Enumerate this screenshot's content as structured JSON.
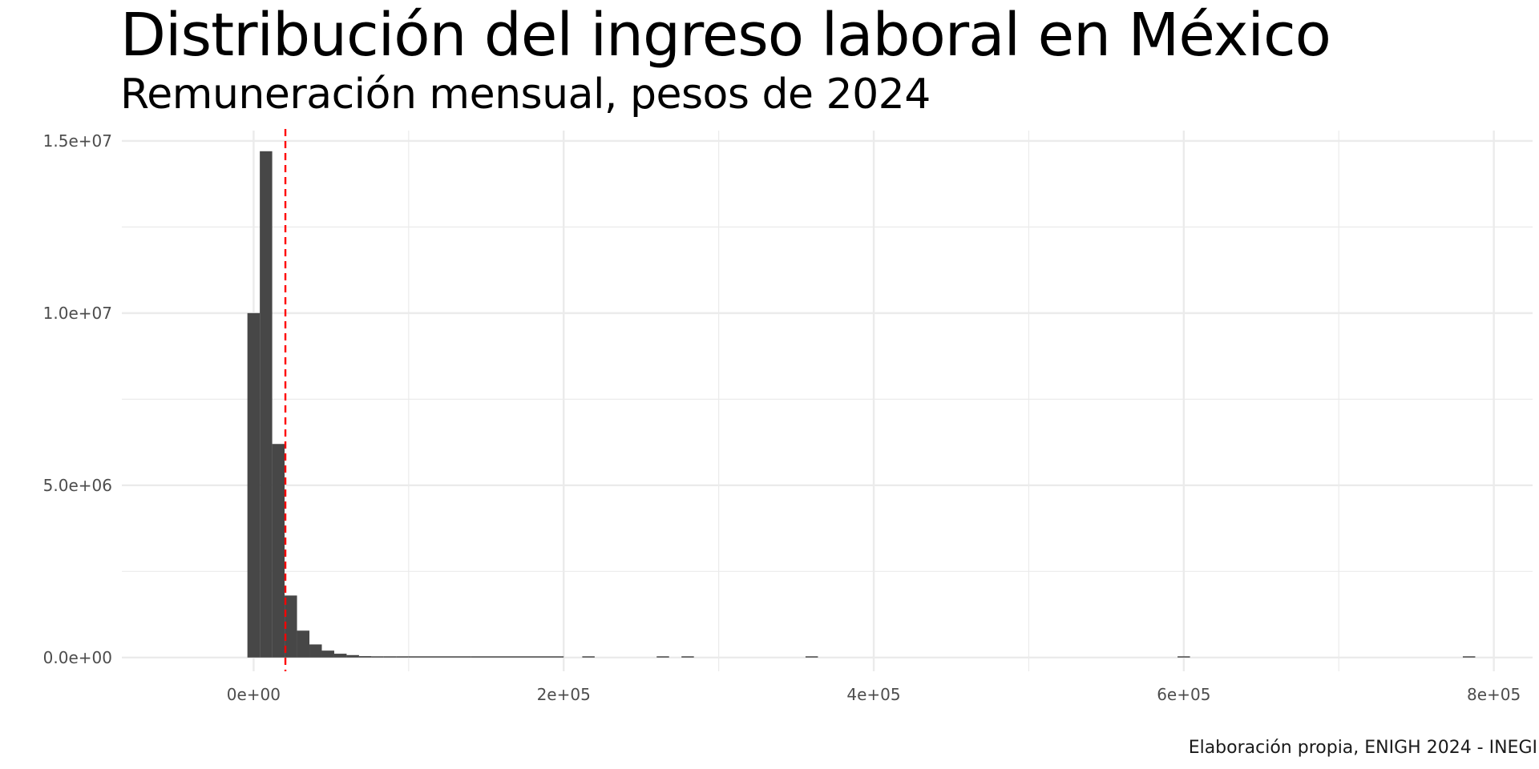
{
  "chart_data": {
    "type": "bar",
    "title": "Distribución del ingreso laboral en México",
    "subtitle": "Remuneración mensual, pesos de 2024",
    "caption": "Elaboración propia, ENIGH 2024 - INEGI",
    "xlabel": "",
    "ylabel": "",
    "x_ticks": [
      0,
      200000,
      400000,
      600000,
      800000
    ],
    "x_tick_labels": [
      "0e+00",
      "2e+05",
      "4e+05",
      "6e+05",
      "8e+05"
    ],
    "y_ticks": [
      0,
      5000000,
      10000000,
      15000000
    ],
    "y_tick_labels": [
      "0.0e+00",
      "5.0e+06",
      "1.0e+07",
      "1.5e+07"
    ],
    "xlim": [
      -85000,
      825000
    ],
    "ylim": [
      -400000,
      15300000
    ],
    "grid": true,
    "bin_width": 8000,
    "series": [
      {
        "bins": [
          {
            "x0": -4000,
            "x1": 4000,
            "count": 10000000
          },
          {
            "x0": 4000,
            "x1": 12000,
            "count": 14700000
          },
          {
            "x0": 12000,
            "x1": 20000,
            "count": 6200000
          },
          {
            "x0": 20000,
            "x1": 28000,
            "count": 1800000
          },
          {
            "x0": 28000,
            "x1": 36000,
            "count": 780000
          },
          {
            "x0": 36000,
            "x1": 44000,
            "count": 380000
          },
          {
            "x0": 44000,
            "x1": 52000,
            "count": 200000
          },
          {
            "x0": 52000,
            "x1": 60000,
            "count": 110000
          },
          {
            "x0": 60000,
            "x1": 68000,
            "count": 70000
          },
          {
            "x0": 68000,
            "x1": 76000,
            "count": 40000
          },
          {
            "x0": 76000,
            "x1": 84000,
            "count": 25000
          },
          {
            "x0": 84000,
            "x1": 92000,
            "count": 15000
          },
          {
            "x0": 92000,
            "x1": 100000,
            "count": 10000
          },
          {
            "x0": 100000,
            "x1": 140000,
            "count": 8000
          },
          {
            "x0": 140000,
            "x1": 200000,
            "count": 5000
          },
          {
            "x0": 212000,
            "x1": 220000,
            "count": 3000
          },
          {
            "x0": 260000,
            "x1": 268000,
            "count": 3000
          },
          {
            "x0": 276000,
            "x1": 284000,
            "count": 3000
          },
          {
            "x0": 356000,
            "x1": 364000,
            "count": 3000
          },
          {
            "x0": 596000,
            "x1": 604000,
            "count": 3000
          },
          {
            "x0": 780000,
            "x1": 788000,
            "count": 3000
          }
        ]
      }
    ],
    "reference_line": {
      "x": 20500,
      "style": "dashed"
    },
    "colors": {
      "bars": "#474747",
      "reference_line": "#ff0000",
      "grid": "#ebebeb"
    }
  }
}
